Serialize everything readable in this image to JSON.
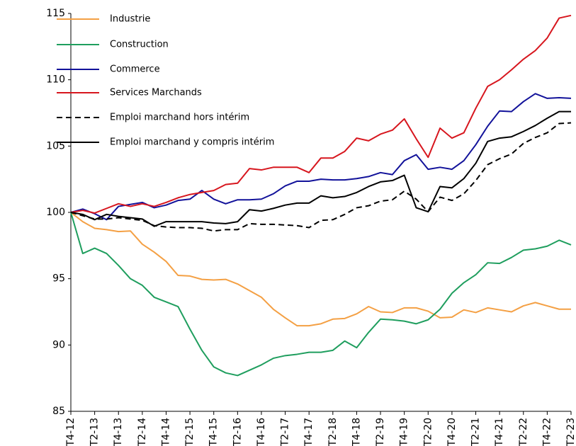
{
  "chart_data": {
    "type": "line",
    "categories": [
      "T4-12",
      null,
      "T2-13",
      null,
      "T4-13",
      null,
      "T2-14",
      null,
      "T4-14",
      null,
      "T2-15",
      null,
      "T4-15",
      null,
      "T2-16",
      null,
      "T4-16",
      null,
      "T2-17",
      null,
      "T4-17",
      null,
      "T2-18",
      null,
      "T4-18",
      null,
      "T2-19",
      null,
      "T4-19",
      null,
      "T2-20",
      null,
      "T4-20",
      null,
      "T2-21",
      null,
      "T4-21",
      null,
      "T2-22",
      null,
      "T4-22",
      null,
      "T2-23"
    ],
    "series": [
      {
        "name": "Industrie",
        "color": "#f4a044",
        "dash": false,
        "values": [
          100,
          99.3,
          98.8,
          98.7,
          98.55,
          98.6,
          97.6,
          97.0,
          96.3,
          95.25,
          95.2,
          94.95,
          94.9,
          94.95,
          94.6,
          94.1,
          93.6,
          92.7,
          92.05,
          91.45,
          91.45,
          91.6,
          91.95,
          92.0,
          92.35,
          92.9,
          92.5,
          92.45,
          92.8,
          92.8,
          92.55,
          92.05,
          92.1,
          92.65,
          92.45,
          92.8,
          92.65,
          92.5,
          92.95,
          93.2,
          92.95,
          92.7,
          92.7
        ]
      },
      {
        "name": "Construction",
        "color": "#1f9e5e",
        "dash": false,
        "values": [
          100,
          96.9,
          97.3,
          96.9,
          96.0,
          95.0,
          94.5,
          93.6,
          93.25,
          92.9,
          91.2,
          89.6,
          88.35,
          87.9,
          87.7,
          88.1,
          88.5,
          89.0,
          89.2,
          89.3,
          89.45,
          89.45,
          89.6,
          90.3,
          89.8,
          90.95,
          91.95,
          91.9,
          91.8,
          91.6,
          91.9,
          92.7,
          93.9,
          94.7,
          95.3,
          96.2,
          96.15,
          96.6,
          97.15,
          97.25,
          97.45,
          97.9,
          97.55
        ]
      },
      {
        "name": "Commerce",
        "color": "#12129a",
        "dash": false,
        "values": [
          100,
          100.25,
          99.9,
          99.45,
          100.45,
          100.6,
          100.75,
          100.35,
          100.55,
          100.9,
          101.0,
          101.65,
          101.0,
          100.65,
          100.95,
          100.95,
          101.0,
          101.4,
          102.0,
          102.35,
          102.35,
          102.5,
          102.45,
          102.45,
          102.55,
          102.7,
          103.0,
          102.85,
          103.9,
          104.35,
          103.25,
          103.4,
          103.25,
          103.9,
          105.1,
          106.5,
          107.65,
          107.6,
          108.35,
          108.95,
          108.6,
          108.65,
          108.6
        ]
      },
      {
        "name": "Services Marchands",
        "color": "#d7161e",
        "dash": false,
        "values": [
          100,
          100.15,
          99.95,
          100.3,
          100.65,
          100.45,
          100.65,
          100.45,
          100.75,
          101.1,
          101.35,
          101.5,
          101.65,
          102.1,
          102.2,
          103.3,
          103.2,
          103.4,
          103.4,
          103.4,
          103.0,
          104.1,
          104.1,
          104.6,
          105.6,
          105.4,
          105.9,
          106.2,
          107.05,
          105.55,
          104.15,
          106.35,
          105.6,
          106.0,
          107.85,
          109.5,
          110.0,
          110.75,
          111.55,
          112.2,
          113.15,
          114.65,
          114.85
        ]
      },
      {
        "name": "Emploi marchand hors intérim",
        "color": "#000000",
        "dash": true,
        "values": [
          100,
          99.75,
          99.5,
          99.5,
          99.6,
          99.5,
          99.4,
          99.0,
          98.9,
          98.85,
          98.85,
          98.8,
          98.6,
          98.7,
          98.7,
          99.15,
          99.1,
          99.1,
          99.05,
          99.0,
          98.85,
          99.4,
          99.45,
          99.85,
          100.35,
          100.5,
          100.85,
          100.95,
          101.6,
          101.0,
          100.05,
          101.15,
          100.9,
          101.4,
          102.4,
          103.6,
          104.05,
          104.4,
          105.2,
          105.65,
          106.0,
          106.7,
          106.75
        ]
      },
      {
        "name": "Emploi marchand y compris intérim",
        "color": "#000000",
        "dash": false,
        "values": [
          100,
          99.85,
          99.45,
          99.85,
          99.7,
          99.6,
          99.5,
          98.95,
          99.3,
          99.3,
          99.3,
          99.3,
          99.2,
          99.15,
          99.3,
          100.2,
          100.1,
          100.3,
          100.55,
          100.7,
          100.7,
          101.25,
          101.1,
          101.2,
          101.5,
          101.95,
          102.3,
          102.4,
          102.8,
          100.35,
          100.05,
          101.95,
          101.85,
          102.55,
          103.7,
          105.35,
          105.6,
          105.7,
          106.1,
          106.55,
          107.1,
          107.6,
          107.6
        ]
      }
    ],
    "ylim": [
      85,
      115
    ],
    "yticks": [
      85,
      90,
      95,
      100,
      105,
      110,
      115
    ],
    "grid": false,
    "legend": "upper-left"
  }
}
